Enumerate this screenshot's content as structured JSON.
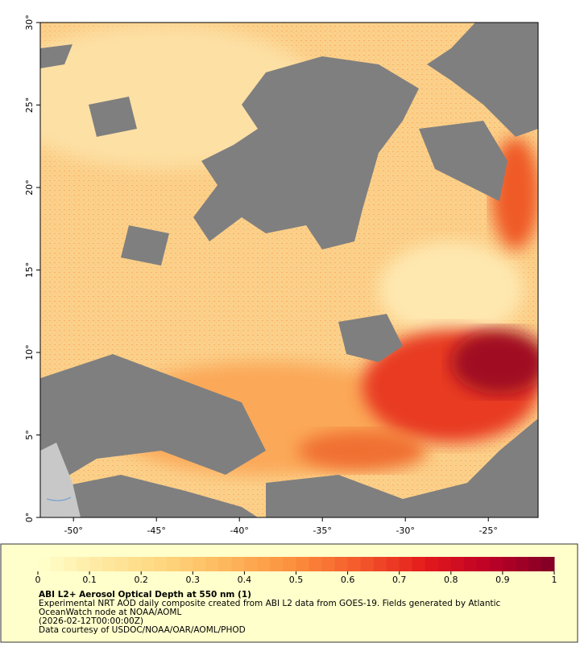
{
  "map": {
    "xlim": [
      -52,
      -22
    ],
    "ylim": [
      0,
      30
    ],
    "xticks": [
      {
        "value": -50,
        "label": "-50°"
      },
      {
        "value": -45,
        "label": "-45°"
      },
      {
        "value": -40,
        "label": "-40°"
      },
      {
        "value": -35,
        "label": "-35°"
      },
      {
        "value": -30,
        "label": "-30°"
      },
      {
        "value": -25,
        "label": "-25°"
      }
    ],
    "yticks": [
      {
        "value": 0,
        "label": "0°"
      },
      {
        "value": 5,
        "label": "5°"
      },
      {
        "value": 10,
        "label": "10°"
      },
      {
        "value": 15,
        "label": "15°"
      },
      {
        "value": 20,
        "label": "20°"
      },
      {
        "value": 25,
        "label": "25°"
      },
      {
        "value": 30,
        "label": "30°"
      }
    ]
  },
  "colorbar": {
    "range": [
      0,
      1
    ],
    "ticks": [
      0,
      0.1,
      0.2,
      0.3,
      0.4,
      0.5,
      0.6,
      0.7,
      0.8,
      0.9,
      1
    ],
    "colors": [
      "#ffffcc",
      "#fee8a0",
      "#fed57c",
      "#fdb45a",
      "#fc8d3c",
      "#f4582b",
      "#e31a1c",
      "#bd0026",
      "#800026"
    ]
  },
  "caption": {
    "title": "ABI L2+ Aerosol Optical Depth at 550 nm (1)",
    "lines": [
      "Experimental NRT AOD daily composite created from ABI L2 data from GOES-19. Fields generated by Atlantic",
      "OceanWatch node at NOAA/AOML",
      "(2026-02-12T00:00:00Z)",
      "Data courtesy of USDOC/NOAA/OAR/AOML/PHOD"
    ]
  }
}
